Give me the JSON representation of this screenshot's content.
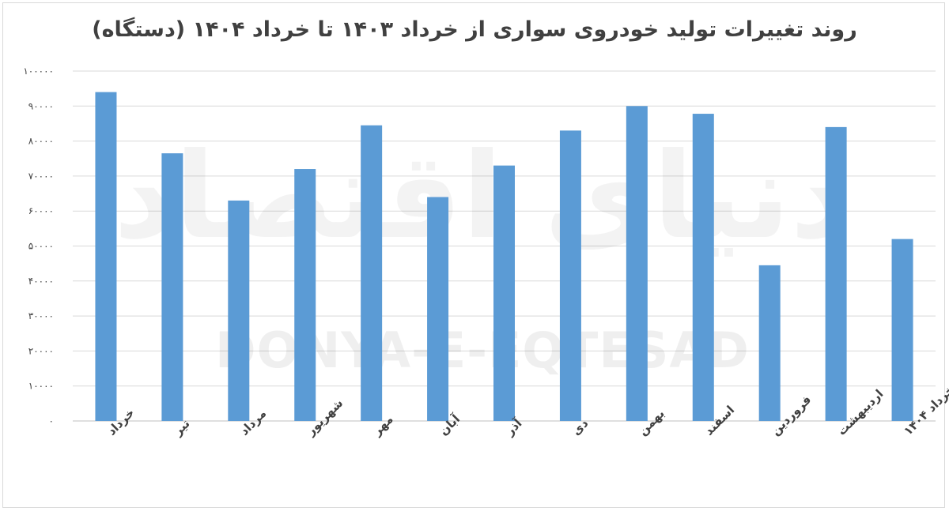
{
  "chart_data": {
    "type": "bar",
    "title": "روند تغییرات تولید خودروی سواری از خرداد ۱۴۰۳ تا خرداد ۱۴۰۴ (دستگاه)",
    "xlabel": "",
    "ylabel": "",
    "categories": [
      "خرداد",
      "تیر",
      "مرداد",
      "شهریور",
      "مهر",
      "آبان",
      "آذر",
      "دی",
      "بهمن",
      "اسفند",
      "فروردین",
      "اردیبهشت",
      "خرداد ۱۴۰۴"
    ],
    "values": [
      94000,
      76500,
      63000,
      72000,
      84500,
      64000,
      73000,
      83000,
      90000,
      87800,
      44500,
      84000,
      52000
    ],
    "ylim": [
      0,
      100000
    ],
    "yticks": [
      0,
      10000,
      20000,
      30000,
      40000,
      50000,
      60000,
      70000,
      80000,
      90000,
      100000
    ],
    "ytick_labels": [
      "۰",
      "۱۰۰۰۰",
      "۲۰۰۰۰",
      "۳۰۰۰۰",
      "۴۰۰۰۰",
      "۵۰۰۰۰",
      "۶۰۰۰۰",
      "۷۰۰۰۰",
      "۸۰۰۰۰",
      "۹۰۰۰۰",
      "۱۰۰۰۰۰"
    ],
    "grid": true,
    "legend": "none",
    "bar_color": "#5b9bd5",
    "grid_color": "#d9d9d9"
  },
  "watermark": {
    "text": "DONYA-E-EQTESAD",
    "logo_text": "دنیای اقتصاد"
  }
}
